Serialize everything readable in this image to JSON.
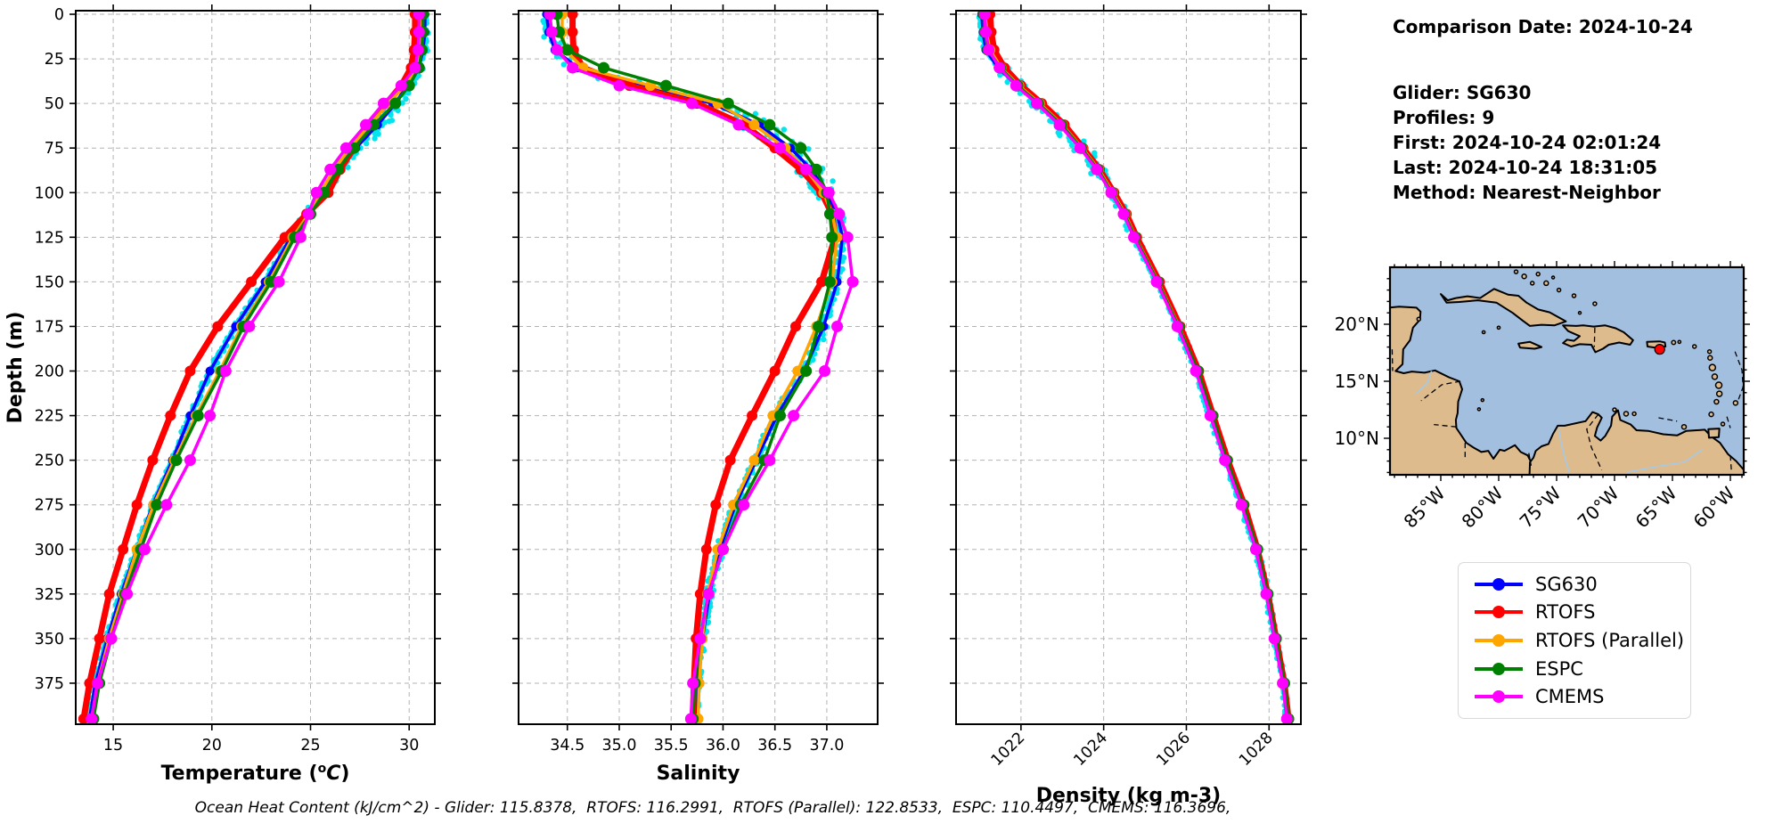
{
  "info_panel": {
    "comparison_date": "Comparison Date: 2024-10-24",
    "glider": "Glider: SG630",
    "profiles": "Profiles: 9",
    "first": "First: 2024-10-24 02:01:24",
    "last": "Last: 2024-10-24 18:31:05",
    "method": "Method: Nearest-Neighbor"
  },
  "footer_note": "Ocean Heat Content (kJ/cm^2) - Glider: 115.8378,  RTOFS: 116.2991,  RTOFS (Parallel): 122.8533,  ESPC: 110.4497,  CMEMS: 116.3696,",
  "legend": {
    "items": [
      {
        "label": "SG630",
        "color": "#0000ff"
      },
      {
        "label": "RTOFS",
        "color": "#ff0000"
      },
      {
        "label": "RTOFS (Parallel)",
        "color": "#ffa500"
      },
      {
        "label": "ESPC",
        "color": "#008000"
      },
      {
        "label": "CMEMS",
        "color": "#ff00ff"
      }
    ]
  },
  "map": {
    "ocean_color": "#a3bfdf",
    "land_color": "#ddbb8d",
    "river_color": "#a6c9e6",
    "lat_tick_values": [
      20,
      15,
      10
    ],
    "lat_tick_labels": [
      "20°N",
      "15°N",
      "10°N"
    ],
    "lon_tick_values": [
      -85,
      -80,
      -75,
      -70,
      -65,
      -60
    ],
    "lon_tick_labels": [
      "85°W",
      "80°W",
      "75°W",
      "70°W",
      "65°W",
      "60°W"
    ],
    "glider_marker": {
      "lon": -66.1,
      "lat": 17.8,
      "color": "#ff0000"
    }
  },
  "chart_data": {
    "type": "line",
    "ylabel": "Depth (m)",
    "ylim": [
      -2,
      398
    ],
    "yticks": [
      0,
      25,
      50,
      75,
      100,
      125,
      150,
      175,
      200,
      225,
      250,
      275,
      300,
      325,
      350,
      375
    ],
    "depths": [
      0,
      10,
      20,
      30,
      40,
      50,
      62,
      75,
      87,
      100,
      112,
      125,
      150,
      175,
      200,
      225,
      250,
      275,
      300,
      325,
      350,
      375,
      395
    ],
    "series_style": [
      {
        "name": "SG630",
        "color": "#0000ff",
        "lw": 3.5,
        "mr": 5.0
      },
      {
        "name": "RTOFS",
        "color": "#ff0000",
        "lw": 7.0,
        "mr": 6.0
      },
      {
        "name": "RTOFS (Parallel)",
        "color": "#ffa500",
        "lw": 3.5,
        "mr": 6.0
      },
      {
        "name": "ESPC",
        "color": "#008000",
        "lw": 3.5,
        "mr": 6.5
      },
      {
        "name": "CMEMS",
        "color": "#ff00ff",
        "lw": 3.5,
        "mr": 6.5
      }
    ],
    "scatter": {
      "name": "glider-raw-points",
      "color": "#00e5ee",
      "r": 3.2
    },
    "panels": [
      {
        "xlabel": "Temperature (°C)",
        "xlim": [
          13.1,
          31.3
        ],
        "xticks": [
          15,
          20,
          25,
          30
        ],
        "xtick_labels": [
          "15",
          "20",
          "25",
          "30"
        ],
        "rotate_xticks": false,
        "scatter_sigma": [
          0.13,
          0.5
        ],
        "series_values": [
          [
            30.8,
            30.8,
            30.7,
            30.5,
            29.9,
            29.3,
            28.4,
            27.3,
            26.4,
            25.6,
            24.8,
            24.0,
            22.7,
            21.2,
            19.9,
            18.9,
            18.0,
            17.0,
            16.2,
            15.4,
            14.7,
            14.1,
            13.8
          ],
          [
            30.3,
            30.3,
            30.25,
            30.1,
            29.6,
            28.85,
            27.9,
            27.2,
            26.5,
            25.9,
            24.8,
            23.7,
            22.0,
            20.3,
            18.9,
            17.9,
            17.0,
            16.2,
            15.5,
            14.8,
            14.3,
            13.8,
            13.5
          ],
          [
            30.6,
            30.6,
            30.55,
            30.4,
            29.8,
            28.95,
            28.0,
            27.0,
            26.2,
            25.5,
            24.9,
            24.1,
            22.9,
            21.5,
            20.4,
            19.2,
            18.1,
            17.05,
            16.2,
            15.5,
            14.8,
            14.2,
            13.9
          ],
          [
            30.7,
            30.7,
            30.65,
            30.5,
            30.0,
            29.3,
            28.2,
            27.2,
            26.4,
            25.7,
            25.0,
            24.2,
            23.0,
            21.6,
            20.5,
            19.3,
            18.2,
            17.2,
            16.4,
            15.6,
            14.9,
            14.3,
            14.0
          ],
          [
            30.5,
            30.5,
            30.45,
            30.3,
            29.6,
            28.7,
            27.8,
            26.8,
            26.0,
            25.3,
            24.9,
            24.5,
            23.4,
            21.9,
            20.7,
            19.9,
            18.9,
            17.7,
            16.6,
            15.7,
            14.9,
            14.2,
            13.9
          ]
        ]
      },
      {
        "xlabel": "Salinity",
        "xlim": [
          34.03,
          37.49
        ],
        "xticks": [
          34.5,
          35.0,
          35.5,
          36.0,
          36.5,
          37.0
        ],
        "xtick_labels": [
          "34.5",
          "35.0",
          "35.5",
          "36.0",
          "36.5",
          "37.0"
        ],
        "rotate_xticks": false,
        "scatter_sigma": [
          0.045,
          0.22
        ],
        "series_values": [
          [
            34.3,
            34.32,
            34.38,
            34.6,
            35.2,
            35.9,
            36.35,
            36.65,
            36.85,
            37.0,
            37.1,
            37.15,
            37.1,
            36.97,
            36.78,
            36.52,
            36.32,
            36.12,
            35.97,
            35.87,
            35.8,
            35.75,
            35.73
          ],
          [
            34.55,
            34.55,
            34.56,
            34.65,
            35.1,
            35.75,
            36.2,
            36.5,
            36.75,
            36.95,
            37.05,
            37.08,
            36.95,
            36.7,
            36.5,
            36.28,
            36.07,
            35.93,
            35.84,
            35.78,
            35.74,
            35.72,
            35.71
          ],
          [
            34.45,
            34.45,
            34.48,
            34.65,
            35.3,
            35.95,
            36.3,
            36.6,
            36.8,
            36.97,
            37.05,
            37.1,
            37.05,
            36.9,
            36.72,
            36.48,
            36.3,
            36.1,
            35.95,
            35.85,
            35.8,
            35.77,
            35.76
          ],
          [
            34.4,
            34.42,
            34.5,
            34.85,
            35.45,
            36.05,
            36.45,
            36.75,
            36.9,
            37.0,
            37.03,
            37.05,
            37.03,
            36.92,
            36.8,
            36.55,
            36.4,
            36.17,
            36.0,
            35.86,
            35.78,
            35.73,
            35.71
          ],
          [
            34.33,
            34.35,
            34.4,
            34.55,
            35.0,
            35.7,
            36.15,
            36.55,
            36.8,
            37.02,
            37.12,
            37.2,
            37.25,
            37.1,
            36.98,
            36.68,
            36.45,
            36.2,
            36.0,
            35.86,
            35.78,
            35.71,
            35.69
          ]
        ]
      },
      {
        "xlabel": "Density (kg m-3)",
        "xlim": [
          1020.43,
          1028.77
        ],
        "xticks": [
          1022,
          1024,
          1026,
          1028
        ],
        "xtick_labels": [
          "1022",
          "1024",
          "1026",
          "1028"
        ],
        "rotate_xticks": true,
        "scatter_sigma": [
          0.07,
          0.25
        ],
        "series_values": [
          [
            1021.05,
            1021.08,
            1021.15,
            1021.45,
            1021.9,
            1022.4,
            1022.95,
            1023.45,
            1023.85,
            1024.2,
            1024.5,
            1024.75,
            1025.3,
            1025.8,
            1026.25,
            1026.6,
            1026.95,
            1027.35,
            1027.7,
            1027.95,
            1028.15,
            1028.35,
            1028.45
          ],
          [
            1021.25,
            1021.28,
            1021.35,
            1021.6,
            1022.0,
            1022.5,
            1023.05,
            1023.5,
            1023.9,
            1024.25,
            1024.55,
            1024.8,
            1025.35,
            1025.85,
            1026.3,
            1026.65,
            1027.0,
            1027.4,
            1027.72,
            1027.97,
            1028.17,
            1028.37,
            1028.47
          ],
          [
            1021.13,
            1021.16,
            1021.25,
            1021.52,
            1021.95,
            1022.45,
            1023.0,
            1023.48,
            1023.88,
            1024.22,
            1024.52,
            1024.77,
            1025.32,
            1025.82,
            1026.27,
            1026.62,
            1026.97,
            1027.37,
            1027.71,
            1027.96,
            1028.16,
            1028.36,
            1028.46
          ],
          [
            1021.1,
            1021.12,
            1021.2,
            1021.5,
            1021.92,
            1022.42,
            1022.98,
            1023.46,
            1023.86,
            1024.2,
            1024.5,
            1024.76,
            1025.31,
            1025.81,
            1026.28,
            1026.63,
            1026.98,
            1027.38,
            1027.72,
            1027.97,
            1028.17,
            1028.37,
            1028.47
          ],
          [
            1021.12,
            1021.15,
            1021.22,
            1021.48,
            1021.88,
            1022.38,
            1022.93,
            1023.43,
            1023.83,
            1024.18,
            1024.48,
            1024.73,
            1025.28,
            1025.78,
            1026.23,
            1026.58,
            1026.93,
            1027.33,
            1027.68,
            1027.93,
            1028.13,
            1028.33,
            1028.43
          ]
        ]
      }
    ]
  }
}
